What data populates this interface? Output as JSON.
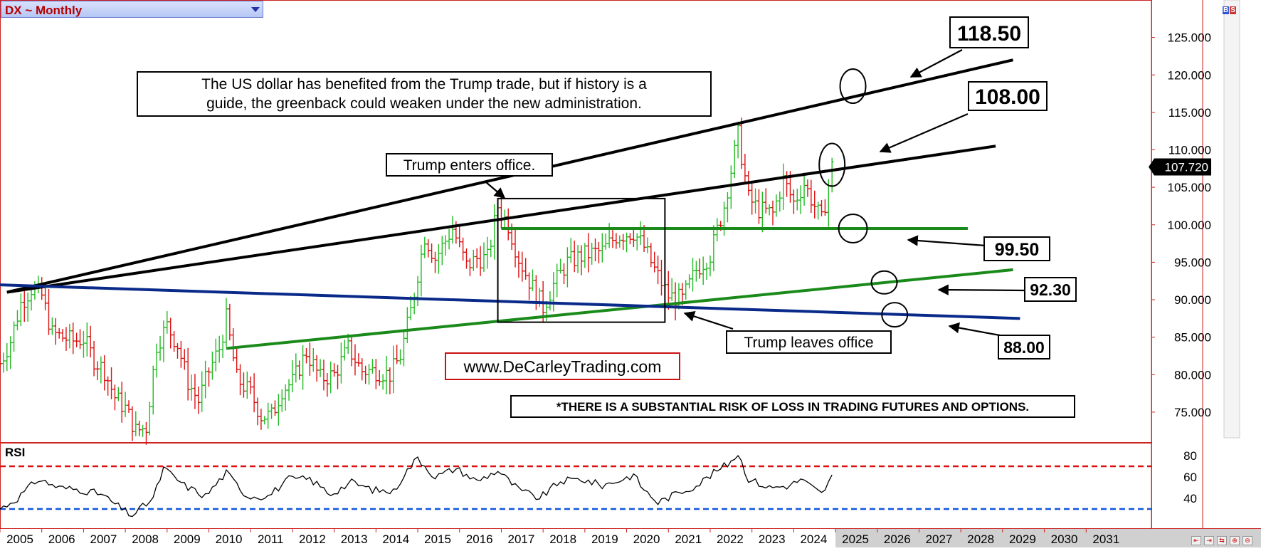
{
  "header": {
    "title": "DX ~ Monthly"
  },
  "toolbar": {
    "badge_b": "B",
    "badge_s": "S"
  },
  "nav_buttons": [
    "⇤",
    "⇥",
    "⇆",
    "⊕",
    "⊖"
  ],
  "chart_data": {
    "type": "ohlc",
    "symbol": "DX",
    "timeframe": "Monthly",
    "x_axis": {
      "type": "date",
      "range": [
        "2005-01",
        "2031-12"
      ],
      "tick_labels": [
        "2005",
        "2006",
        "2007",
        "2008",
        "2009",
        "2010",
        "2011",
        "2012",
        "2013",
        "2014",
        "2015",
        "2016",
        "2017",
        "2018",
        "2019",
        "2020",
        "2021",
        "2022",
        "2023",
        "2024",
        "2025",
        "2026",
        "2027",
        "2028",
        "2029",
        "2030",
        "2031"
      ]
    },
    "y_axis": {
      "range": [
        71,
        130
      ],
      "tick_values": [
        75,
        80,
        85,
        90,
        95,
        100,
        105,
        110,
        115,
        120,
        125
      ],
      "tick_labels": [
        "75.000",
        "80.000",
        "85.000",
        "90.000",
        "95.000",
        "100.000",
        "105.000",
        "110.000",
        "115.000",
        "120.000",
        "125.000"
      ]
    },
    "last_price": {
      "date": "2024-12",
      "value": 107.72,
      "label": "107.720"
    },
    "price_series": [
      [
        "2005-01",
        81.5
      ],
      [
        "2005-04",
        84.5
      ],
      [
        "2005-07",
        89.5
      ],
      [
        "2005-10",
        91.5
      ],
      [
        "2006-01",
        90.5
      ],
      [
        "2006-04",
        85.5
      ],
      [
        "2006-07",
        85.0
      ],
      [
        "2006-10",
        84.5
      ],
      [
        "2007-01",
        84.8
      ],
      [
        "2007-04",
        82.0
      ],
      [
        "2007-07",
        80.5
      ],
      [
        "2007-10",
        77.0
      ],
      [
        "2008-01",
        75.5
      ],
      [
        "2008-04",
        72.5
      ],
      [
        "2008-07",
        73.0
      ],
      [
        "2008-10",
        84.0
      ],
      [
        "2009-01",
        86.5
      ],
      [
        "2009-04",
        84.0
      ],
      [
        "2009-07",
        79.0
      ],
      [
        "2009-10",
        76.5
      ],
      [
        "2010-01",
        80.5
      ],
      [
        "2010-04",
        83.5
      ],
      [
        "2010-06",
        87.5
      ],
      [
        "2010-09",
        79.5
      ],
      [
        "2011-01",
        77.5
      ],
      [
        "2011-04",
        74.5
      ],
      [
        "2011-07",
        74.5
      ],
      [
        "2011-10",
        78.0
      ],
      [
        "2012-01",
        79.0
      ],
      [
        "2012-05",
        83.0
      ],
      [
        "2012-09",
        79.5
      ],
      [
        "2013-01",
        80.0
      ],
      [
        "2013-05",
        83.5
      ],
      [
        "2013-09",
        80.5
      ],
      [
        "2014-01",
        80.5
      ],
      [
        "2014-05",
        80.0
      ],
      [
        "2014-08",
        82.5
      ],
      [
        "2014-11",
        88.5
      ],
      [
        "2015-03",
        98.5
      ],
      [
        "2015-06",
        95.5
      ],
      [
        "2015-11",
        99.5
      ],
      [
        "2016-03",
        94.5
      ],
      [
        "2016-06",
        95.5
      ],
      [
        "2016-09",
        95.5
      ],
      [
        "2016-12",
        102.5
      ],
      [
        "2017-03",
        100.0
      ],
      [
        "2017-06",
        95.5
      ],
      [
        "2017-09",
        92.5
      ],
      [
        "2018-01",
        89.0
      ],
      [
        "2018-04",
        92.0
      ],
      [
        "2018-08",
        95.0
      ],
      [
        "2019-01",
        96.0
      ],
      [
        "2019-06",
        96.5
      ],
      [
        "2019-10",
        98.5
      ],
      [
        "2020-03",
        99.0
      ],
      [
        "2020-06",
        97.0
      ],
      [
        "2020-09",
        94.0
      ],
      [
        "2021-01",
        90.5
      ],
      [
        "2021-05",
        90.0
      ],
      [
        "2021-09",
        94.0
      ],
      [
        "2022-01",
        96.0
      ],
      [
        "2022-05",
        102.5
      ],
      [
        "2022-09",
        112.0
      ],
      [
        "2022-12",
        103.5
      ],
      [
        "2023-03",
        102.0
      ],
      [
        "2023-07",
        101.5
      ],
      [
        "2023-10",
        106.0
      ],
      [
        "2024-01",
        103.0
      ],
      [
        "2024-04",
        105.5
      ],
      [
        "2024-09",
        100.5
      ],
      [
        "2024-12",
        107.72
      ]
    ],
    "trendlines": [
      {
        "color": "#000000",
        "from": [
          "2005-03",
          91.0
        ],
        "to": [
          "2029-04",
          122.0
        ]
      },
      {
        "color": "#000000",
        "from": [
          "2005-03",
          91.0
        ],
        "to": [
          "2028-11",
          110.5
        ]
      },
      {
        "color": "#1a8a1a",
        "from": [
          "2017-01",
          99.5
        ],
        "to": [
          "2028-03",
          99.5
        ]
      },
      {
        "color": "#1a8a1a",
        "from": [
          "2010-06",
          83.5
        ],
        "to": [
          "2029-04",
          94.0
        ]
      },
      {
        "color": "#0a2a8a",
        "from": [
          "2004-12",
          92.0
        ],
        "to": [
          "2029-06",
          87.5
        ]
      }
    ],
    "circles": [
      {
        "at": [
          "2025-06",
          118.5
        ]
      },
      {
        "at": [
          "2024-12",
          108.0
        ]
      },
      {
        "at": [
          "2025-06",
          99.5
        ]
      },
      {
        "at": [
          "2026-03",
          92.3
        ]
      },
      {
        "at": [
          "2026-06",
          88.0
        ]
      }
    ],
    "box": {
      "from": [
        "2016-12",
        103.5
      ],
      "to": [
        "2020-12",
        87.0
      ]
    },
    "annotations": [
      "The US dollar has benefited from the Trump trade, but if history is a",
      "guide, the greenback could weaken under the new administration."
    ],
    "callouts": {
      "trump_enters": "Trump enters office.",
      "trump_leaves": "Trump leaves office",
      "level_118": "118.50",
      "level_108": "108.00",
      "level_99": "99.50",
      "level_92": "92.30",
      "level_88": "88.00",
      "website": "www.DeCarleyTrading.com",
      "disclaimer": "*THERE IS A SUBSTANTIAL RISK OF LOSS IN TRADING FUTURES AND OPTIONS."
    },
    "rsi": {
      "label": "RSI",
      "y_range": [
        12,
        92
      ],
      "tick_labels": [
        "40",
        "60",
        "80"
      ],
      "tick_values": [
        40,
        60,
        80
      ],
      "overbought": 70,
      "oversold": 30,
      "overbought_color": "#dd1111",
      "oversold_color": "#1155dd",
      "series": [
        [
          "2005-01",
          30
        ],
        [
          "2005-06",
          40
        ],
        [
          "2005-12",
          58
        ],
        [
          "2006-06",
          50
        ],
        [
          "2006-12",
          48
        ],
        [
          "2007-06",
          44
        ],
        [
          "2007-12",
          30
        ],
        [
          "2008-03",
          24
        ],
        [
          "2008-06",
          32
        ],
        [
          "2008-09",
          40
        ],
        [
          "2008-12",
          68
        ],
        [
          "2009-06",
          52
        ],
        [
          "2009-12",
          42
        ],
        [
          "2010-06",
          64
        ],
        [
          "2010-12",
          42
        ],
        [
          "2011-06",
          42
        ],
        [
          "2011-12",
          58
        ],
        [
          "2012-06",
          58
        ],
        [
          "2012-12",
          44
        ],
        [
          "2013-06",
          55
        ],
        [
          "2013-12",
          48
        ],
        [
          "2014-06",
          46
        ],
        [
          "2014-09",
          62
        ],
        [
          "2015-01",
          78
        ],
        [
          "2015-06",
          60
        ],
        [
          "2015-12",
          68
        ],
        [
          "2016-06",
          56
        ],
        [
          "2016-12",
          66
        ],
        [
          "2017-06",
          48
        ],
        [
          "2017-12",
          40
        ],
        [
          "2018-06",
          56
        ],
        [
          "2018-12",
          58
        ],
        [
          "2019-06",
          52
        ],
        [
          "2019-12",
          58
        ],
        [
          "2020-03",
          62
        ],
        [
          "2020-06",
          48
        ],
        [
          "2020-10",
          36
        ],
        [
          "2021-03",
          44
        ],
        [
          "2021-09",
          52
        ],
        [
          "2022-03",
          66
        ],
        [
          "2022-06",
          72
        ],
        [
          "2022-09",
          82
        ],
        [
          "2022-12",
          58
        ],
        [
          "2023-06",
          50
        ],
        [
          "2023-12",
          52
        ],
        [
          "2024-03",
          58
        ],
        [
          "2024-09",
          44
        ],
        [
          "2024-12",
          60
        ]
      ]
    }
  }
}
